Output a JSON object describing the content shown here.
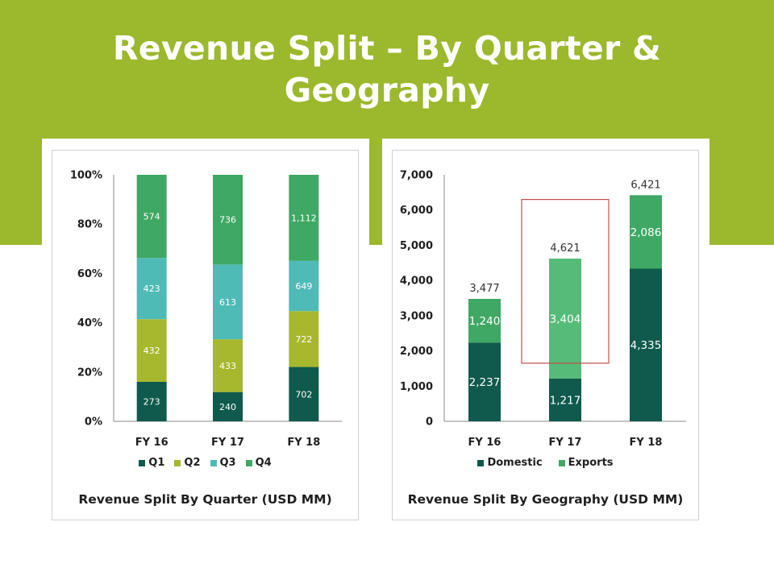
{
  "slide": {
    "title_line1": "Revenue Split – By Quarter &",
    "title_line2": "Geography"
  },
  "colors": {
    "band": "#9cb82d",
    "q1": "#0f5a4c",
    "q2": "#a7b82e",
    "q3": "#4fbbb6",
    "q4": "#3fa864",
    "domestic": "#0f5a4c",
    "exports": "#3fa864",
    "exports_highlight": "#55bb78",
    "highlight_box": "#c0504d"
  },
  "chart_data": [
    {
      "type": "bar",
      "stacked": "percent",
      "title": "Revenue Split By Quarter (USD MM)",
      "categories": [
        "FY 16",
        "FY 17",
        "FY 18"
      ],
      "series": [
        {
          "name": "Q1",
          "values": [
            273,
            240,
            702
          ]
        },
        {
          "name": "Q2",
          "values": [
            432,
            433,
            722
          ]
        },
        {
          "name": "Q3",
          "values": [
            423,
            613,
            649
          ]
        },
        {
          "name": "Q4",
          "values": [
            574,
            736,
            1112
          ]
        }
      ],
      "value_labels": [
        [
          "273",
          "240",
          "702"
        ],
        [
          "432",
          "433",
          "722"
        ],
        [
          "423",
          "613",
          "649"
        ],
        [
          "574",
          "736",
          "1,112"
        ]
      ],
      "ylim": [
        0,
        100
      ],
      "yticks": [
        "0%",
        "20%",
        "40%",
        "60%",
        "80%",
        "100%"
      ],
      "legend": "bottom",
      "grid": false
    },
    {
      "type": "bar",
      "stacked": "absolute",
      "title": "Revenue Split By Geography (USD MM)",
      "categories": [
        "FY 16",
        "FY 17",
        "FY 18"
      ],
      "series": [
        {
          "name": "Domestic",
          "values": [
            2237,
            1217,
            4335
          ]
        },
        {
          "name": "Exports",
          "values": [
            1240,
            3404,
            2086
          ]
        }
      ],
      "value_labels": [
        [
          "2,237",
          "1,217",
          "4,335"
        ],
        [
          "1,240",
          "3,404",
          "2,086"
        ]
      ],
      "totals": [
        3477,
        4621,
        6421
      ],
      "total_labels": [
        "3,477",
        "4,621",
        "6,421"
      ],
      "ylim": [
        0,
        7000
      ],
      "yticks": [
        "0",
        "1,000",
        "2,000",
        "3,000",
        "4,000",
        "5,000",
        "6,000",
        "7,000"
      ],
      "highlight_category": "FY 17",
      "legend": "bottom",
      "grid": false
    }
  ]
}
